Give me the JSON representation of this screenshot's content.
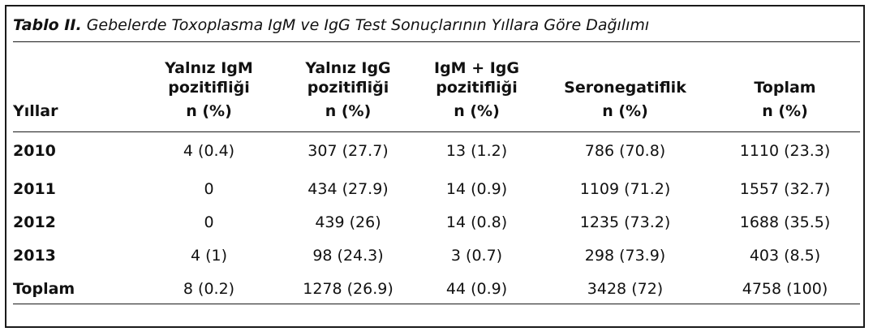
{
  "caption": {
    "lead": "Tablo II.",
    "text": " Gebelerde Toxoplasma IgM ve IgG Test Sonuçlarının Yıllara Göre Dağılımı"
  },
  "header": {
    "years": "Yıllar",
    "columns": [
      {
        "label": "Yalnız IgM pozitifliği",
        "unit": "n (%)"
      },
      {
        "label": "Yalnız IgG pozitifliği",
        "unit": "n (%)"
      },
      {
        "label": "IgM + IgG pozitifliği",
        "unit": "n (%)"
      },
      {
        "label": "Seronegatiflik",
        "unit": "n (%)"
      },
      {
        "label": "Toplam",
        "unit": "n (%)"
      }
    ]
  },
  "rows": [
    {
      "year": "2010",
      "cells": [
        "4 (0.4)",
        "307 (27.7)",
        "13 (1.2)",
        "786 (70.8)",
        "1110 (23.3)"
      ]
    },
    {
      "year": "2011",
      "cells": [
        "0",
        "434 (27.9)",
        "14 (0.9)",
        "1109 (71.2)",
        "1557 (32.7)"
      ]
    },
    {
      "year": "2012",
      "cells": [
        "0",
        "439 (26)",
        "14 (0.8)",
        "1235 (73.2)",
        "1688 (35.5)"
      ]
    },
    {
      "year": "2013",
      "cells": [
        "4 (1)",
        "98 (24.3)",
        "3 (0.7)",
        "298 (73.9)",
        "403 (8.5)"
      ]
    },
    {
      "year": "Toplam",
      "cells": [
        "8 (0.2)",
        "1278 (26.9)",
        "44 (0.9)",
        "3428 (72)",
        "4758 (100)"
      ]
    }
  ]
}
